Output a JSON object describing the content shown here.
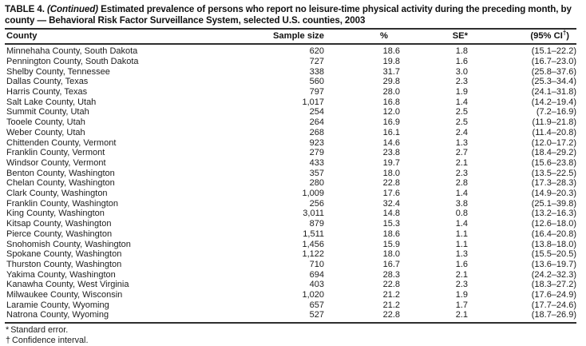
{
  "title": {
    "prefix": "TABLE 4.",
    "continued": "(Continued)",
    "rest": "Estimated prevalence of persons who report no leisure-time physical activity during the preceding month, by county — Behavioral Risk Factor Surveillance System, selected U.S. counties, 2003"
  },
  "table": {
    "columns": [
      {
        "key": "county",
        "label": "County"
      },
      {
        "key": "sample",
        "label": "Sample size"
      },
      {
        "key": "pct",
        "label": "%"
      },
      {
        "key": "se",
        "label": "SE*"
      },
      {
        "key": "ci",
        "label": "(95% CI",
        "sup": "†",
        "suffix": ")"
      }
    ],
    "rows": [
      {
        "county": "Minnehaha County, South Dakota",
        "sample": "620",
        "pct": "18.6",
        "se": "1.8",
        "ci": "(15.1–22.2)"
      },
      {
        "county": "Pennington County, South Dakota",
        "sample": "727",
        "pct": "19.8",
        "se": "1.6",
        "ci": "(16.7–23.0)"
      },
      {
        "county": "Shelby County, Tennessee",
        "sample": "338",
        "pct": "31.7",
        "se": "3.0",
        "ci": "(25.8–37.6)"
      },
      {
        "county": "Dallas County, Texas",
        "sample": "560",
        "pct": "29.8",
        "se": "2.3",
        "ci": "(25.3–34.4)"
      },
      {
        "county": "Harris County, Texas",
        "sample": "797",
        "pct": "28.0",
        "se": "1.9",
        "ci": "(24.1–31.8)"
      },
      {
        "county": "Salt Lake County, Utah",
        "sample": "1,017",
        "pct": "16.8",
        "se": "1.4",
        "ci": "(14.2–19.4)"
      },
      {
        "county": "Summit County, Utah",
        "sample": "254",
        "pct": "12.0",
        "se": "2.5",
        "ci": "(7.2–16.9)"
      },
      {
        "county": "Tooele County, Utah",
        "sample": "264",
        "pct": "16.9",
        "se": "2.5",
        "ci": "(11.9–21.8)"
      },
      {
        "county": "Weber County, Utah",
        "sample": "268",
        "pct": "16.1",
        "se": "2.4",
        "ci": "(11.4–20.8)"
      },
      {
        "county": "Chittenden County, Vermont",
        "sample": "923",
        "pct": "14.6",
        "se": "1.3",
        "ci": "(12.0–17.2)"
      },
      {
        "county": "Franklin County, Vermont",
        "sample": "279",
        "pct": "23.8",
        "se": "2.7",
        "ci": "(18.4–29.2)"
      },
      {
        "county": "Windsor County, Vermont",
        "sample": "433",
        "pct": "19.7",
        "se": "2.1",
        "ci": "(15.6–23.8)"
      },
      {
        "county": "Benton County, Washington",
        "sample": "357",
        "pct": "18.0",
        "se": "2.3",
        "ci": "(13.5–22.5)"
      },
      {
        "county": "Chelan County, Washington",
        "sample": "280",
        "pct": "22.8",
        "se": "2.8",
        "ci": "(17.3–28.3)"
      },
      {
        "county": "Clark County, Washington",
        "sample": "1,009",
        "pct": "17.6",
        "se": "1.4",
        "ci": "(14.9–20.3)"
      },
      {
        "county": "Franklin County, Washington",
        "sample": "256",
        "pct": "32.4",
        "se": "3.8",
        "ci": "(25.1–39.8)"
      },
      {
        "county": "King County, Washington",
        "sample": "3,011",
        "pct": "14.8",
        "se": "0.8",
        "ci": "(13.2–16.3)"
      },
      {
        "county": "Kitsap County, Washington",
        "sample": "879",
        "pct": "15.3",
        "se": "1.4",
        "ci": "(12.6–18.0)"
      },
      {
        "county": "Pierce County, Washington",
        "sample": "1,511",
        "pct": "18.6",
        "se": "1.1",
        "ci": "(16.4–20.8)"
      },
      {
        "county": "Snohomish County, Washington",
        "sample": "1,456",
        "pct": "15.9",
        "se": "1.1",
        "ci": "(13.8–18.0)"
      },
      {
        "county": "Spokane County, Washington",
        "sample": "1,122",
        "pct": "18.0",
        "se": "1.3",
        "ci": "(15.5–20.5)"
      },
      {
        "county": "Thurston County, Washington",
        "sample": "710",
        "pct": "16.7",
        "se": "1.6",
        "ci": "(13.6–19.7)"
      },
      {
        "county": "Yakima County, Washington",
        "sample": "694",
        "pct": "28.3",
        "se": "2.1",
        "ci": "(24.2–32.3)"
      },
      {
        "county": "Kanawha County, West Virginia",
        "sample": "403",
        "pct": "22.8",
        "se": "2.3",
        "ci": "(18.3–27.2)"
      },
      {
        "county": "Milwaukee County, Wisconsin",
        "sample": "1,020",
        "pct": "21.2",
        "se": "1.9",
        "ci": "(17.6–24.9)"
      },
      {
        "county": "Laramie County, Wyoming",
        "sample": "657",
        "pct": "21.2",
        "se": "1.7",
        "ci": "(17.7–24.6)"
      },
      {
        "county": "Natrona County, Wyoming",
        "sample": "527",
        "pct": "22.8",
        "se": "2.1",
        "ci": "(18.7–26.9)"
      }
    ]
  },
  "footnotes": [
    {
      "marker": "*",
      "text": "Standard error."
    },
    {
      "marker": "†",
      "text": "Confidence interval."
    }
  ],
  "colors": {
    "text": "#1c1c1c",
    "rule": "#2e2e2e",
    "background": "#ffffff"
  }
}
